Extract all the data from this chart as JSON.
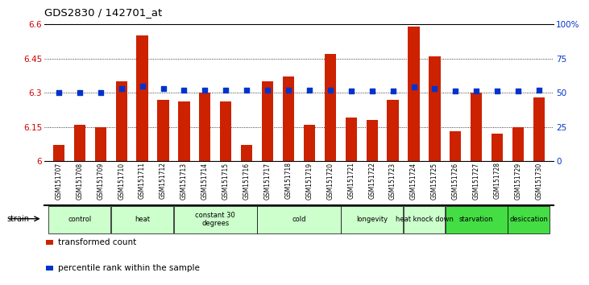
{
  "title": "GDS2830 / 142701_at",
  "samples": [
    "GSM151707",
    "GSM151708",
    "GSM151709",
    "GSM151710",
    "GSM151711",
    "GSM151712",
    "GSM151713",
    "GSM151714",
    "GSM151715",
    "GSM151716",
    "GSM151717",
    "GSM151718",
    "GSM151719",
    "GSM151720",
    "GSM151721",
    "GSM151722",
    "GSM151723",
    "GSM151724",
    "GSM151725",
    "GSM151726",
    "GSM151727",
    "GSM151728",
    "GSM151729",
    "GSM151730"
  ],
  "red_values": [
    6.07,
    6.16,
    6.15,
    6.35,
    6.55,
    6.27,
    6.26,
    6.3,
    6.26,
    6.07,
    6.35,
    6.37,
    6.16,
    6.47,
    6.19,
    6.18,
    6.27,
    6.59,
    6.46,
    6.13,
    6.3,
    6.12,
    6.15,
    6.28
  ],
  "blue_values": [
    50,
    50,
    50,
    53,
    55,
    53,
    52,
    52,
    52,
    52,
    52,
    52,
    52,
    52,
    51,
    51,
    51,
    54,
    53,
    51,
    51,
    51,
    51,
    52
  ],
  "ylim_left": [
    6.0,
    6.6
  ],
  "ylim_right": [
    0,
    100
  ],
  "yticks_left": [
    6.0,
    6.15,
    6.3,
    6.45,
    6.6
  ],
  "yticks_left_labels": [
    "6",
    "6.15",
    "6.3",
    "6.45",
    "6.6"
  ],
  "yticks_right": [
    0,
    25,
    50,
    75,
    100
  ],
  "yticks_right_labels": [
    "0",
    "25",
    "50",
    "75",
    "100%"
  ],
  "bar_color": "#cc2200",
  "dot_color": "#0033cc",
  "axis_color_left": "#cc0000",
  "axis_color_right": "#0033cc",
  "groups": [
    {
      "label": "control",
      "start": 0,
      "end": 3,
      "color": "#ccffcc"
    },
    {
      "label": "heat",
      "start": 3,
      "end": 6,
      "color": "#ccffcc"
    },
    {
      "label": "constant 30\ndegrees",
      "start": 6,
      "end": 10,
      "color": "#ccffcc"
    },
    {
      "label": "cold",
      "start": 10,
      "end": 14,
      "color": "#ccffcc"
    },
    {
      "label": "longevity",
      "start": 14,
      "end": 17,
      "color": "#ccffcc"
    },
    {
      "label": "heat knock down",
      "start": 17,
      "end": 19,
      "color": "#ccffcc"
    },
    {
      "label": "starvation",
      "start": 19,
      "end": 22,
      "color": "#44dd44"
    },
    {
      "label": "desiccation",
      "start": 22,
      "end": 24,
      "color": "#44dd44"
    }
  ],
  "legend_red_label": "transformed count",
  "legend_blue_label": "percentile rank within the sample",
  "strain_label": "strain"
}
